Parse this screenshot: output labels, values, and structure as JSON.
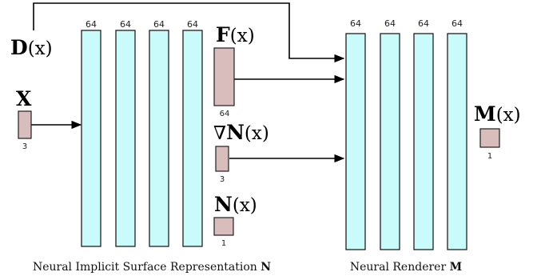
{
  "colors": {
    "layer_fill": "#c9fbfb",
    "layer_stroke": "#1f1f1f",
    "feature_fill": "#d9bcbc",
    "feature_stroke": "#1f1f1f",
    "arrow": "#000000"
  },
  "implicit_network": {
    "caption_text": "Neural Implicit Surface Representation",
    "caption_symbol": "N",
    "layers": [
      {
        "width_label": "64"
      },
      {
        "width_label": "64"
      },
      {
        "width_label": "64"
      },
      {
        "width_label": "64"
      }
    ]
  },
  "renderer_network": {
    "caption_text": "Neural Renderer",
    "caption_symbol": "M",
    "layers": [
      {
        "width_label": "64"
      },
      {
        "width_label": "64"
      },
      {
        "width_label": "64"
      },
      {
        "width_label": "64"
      }
    ]
  },
  "inputs": {
    "x_label": "X",
    "x_dim": "3",
    "d_label_bold": "D",
    "d_label_rest": "(x)"
  },
  "features": {
    "f_bold": "F",
    "f_rest": "(x)",
    "f_dim": "64",
    "grad_symbol": "∇",
    "grad_bold": "N",
    "grad_rest": "(x)",
    "grad_dim": "3",
    "n_bold": "N",
    "n_rest": "(x)",
    "n_dim": "1"
  },
  "output": {
    "m_bold": "M",
    "m_rest": "(x)",
    "m_dim": "1"
  }
}
